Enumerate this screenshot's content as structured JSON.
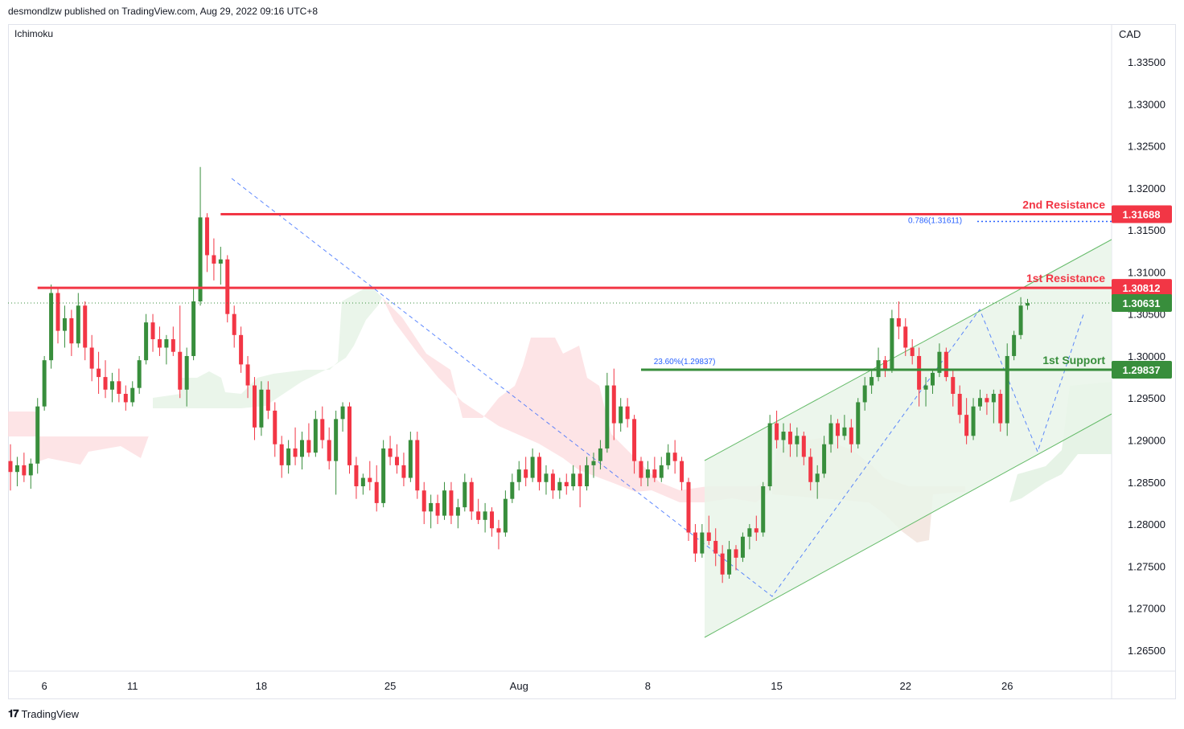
{
  "header": {
    "published": "desmondlzw published on TradingView.com, Aug 29, 2022 09:16 UTC+8"
  },
  "footer": {
    "brand": "TradingView"
  },
  "chart_data": {
    "type": "candlestick",
    "symbol_currency": "CAD",
    "indicator": "Ichimoku",
    "ylim": [
      1.2625,
      1.3395
    ],
    "y_ticks": [
      "1.33500",
      "1.33000",
      "1.32500",
      "1.32000",
      "1.31500",
      "1.31000",
      "1.30500",
      "1.30000",
      "1.29500",
      "1.29000",
      "1.28500",
      "1.28000",
      "1.27500",
      "1.27000",
      "1.26500"
    ],
    "x_ticks": [
      {
        "label": "6",
        "bar": 5
      },
      {
        "label": "11",
        "bar": 18
      },
      {
        "label": "18",
        "bar": 37
      },
      {
        "label": "25",
        "bar": 56
      },
      {
        "label": "Aug",
        "bar": 75
      },
      {
        "label": "8",
        "bar": 94
      },
      {
        "label": "15",
        "bar": 113
      },
      {
        "label": "22",
        "bar": 132
      },
      {
        "label": "26",
        "bar": 147
      }
    ],
    "levels": [
      {
        "name": "2nd Resistance",
        "value": 1.31688,
        "color": "#f23645",
        "from_bar": 31
      },
      {
        "name": "1st Resistance",
        "value": 1.30812,
        "color": "#f23645",
        "from_bar": 4
      },
      {
        "name": "1st Support",
        "value": 1.29837,
        "color": "#388e3c",
        "from_bar": 93
      }
    ],
    "current_price": {
      "value": 1.30631,
      "color": "#388e3c"
    },
    "fib_annotations": [
      {
        "text": "0.786(1.31611)",
        "value": 1.31611,
        "from_bar": 151
      },
      {
        "text": "23.60%(1.29837)",
        "value": 1.29837,
        "from_bar": 97
      }
    ],
    "candles": [
      {
        "o": 1.2875,
        "h": 1.2895,
        "l": 1.284,
        "c": 1.2862
      },
      {
        "o": 1.2862,
        "h": 1.288,
        "l": 1.2845,
        "c": 1.287
      },
      {
        "o": 1.287,
        "h": 1.2885,
        "l": 1.285,
        "c": 1.2858
      },
      {
        "o": 1.2858,
        "h": 1.2878,
        "l": 1.2842,
        "c": 1.2872
      },
      {
        "o": 1.2872,
        "h": 1.295,
        "l": 1.286,
        "c": 1.294
      },
      {
        "o": 1.294,
        "h": 1.3,
        "l": 1.2935,
        "c": 1.2995
      },
      {
        "o": 1.2995,
        "h": 1.3085,
        "l": 1.2985,
        "c": 1.3075
      },
      {
        "o": 1.3075,
        "h": 1.308,
        "l": 1.3015,
        "c": 1.303
      },
      {
        "o": 1.303,
        "h": 1.306,
        "l": 1.301,
        "c": 1.3045
      },
      {
        "o": 1.3045,
        "h": 1.3055,
        "l": 1.3,
        "c": 1.3015
      },
      {
        "o": 1.3015,
        "h": 1.3075,
        "l": 1.301,
        "c": 1.306
      },
      {
        "o": 1.306,
        "h": 1.3065,
        "l": 1.2995,
        "c": 1.301
      },
      {
        "o": 1.301,
        "h": 1.3025,
        "l": 1.297,
        "c": 1.2985
      },
      {
        "o": 1.2985,
        "h": 1.3005,
        "l": 1.2955,
        "c": 1.2975
      },
      {
        "o": 1.2975,
        "h": 1.2995,
        "l": 1.295,
        "c": 1.296
      },
      {
        "o": 1.296,
        "h": 1.298,
        "l": 1.2945,
        "c": 1.297
      },
      {
        "o": 1.297,
        "h": 1.2985,
        "l": 1.2945,
        "c": 1.2955
      },
      {
        "o": 1.2955,
        "h": 1.2965,
        "l": 1.2935,
        "c": 1.2945
      },
      {
        "o": 1.2945,
        "h": 1.297,
        "l": 1.294,
        "c": 1.2962
      },
      {
        "o": 1.2962,
        "h": 1.3,
        "l": 1.2955,
        "c": 1.2995
      },
      {
        "o": 1.2995,
        "h": 1.305,
        "l": 1.299,
        "c": 1.304
      },
      {
        "o": 1.304,
        "h": 1.305,
        "l": 1.3005,
        "c": 1.302
      },
      {
        "o": 1.302,
        "h": 1.3035,
        "l": 1.3,
        "c": 1.301
      },
      {
        "o": 1.301,
        "h": 1.3025,
        "l": 1.299,
        "c": 1.302
      },
      {
        "o": 1.302,
        "h": 1.3035,
        "l": 1.3,
        "c": 1.3005
      },
      {
        "o": 1.3005,
        "h": 1.306,
        "l": 1.295,
        "c": 1.296
      },
      {
        "o": 1.296,
        "h": 1.301,
        "l": 1.294,
        "c": 1.3
      },
      {
        "o": 1.3,
        "h": 1.308,
        "l": 1.2995,
        "c": 1.3065
      },
      {
        "o": 1.3065,
        "h": 1.3225,
        "l": 1.306,
        "c": 1.3165
      },
      {
        "o": 1.3165,
        "h": 1.317,
        "l": 1.31,
        "c": 1.312
      },
      {
        "o": 1.312,
        "h": 1.314,
        "l": 1.309,
        "c": 1.311
      },
      {
        "o": 1.311,
        "h": 1.313,
        "l": 1.3085,
        "c": 1.3115
      },
      {
        "o": 1.3115,
        "h": 1.312,
        "l": 1.304,
        "c": 1.305
      },
      {
        "o": 1.305,
        "h": 1.306,
        "l": 1.301,
        "c": 1.3025
      },
      {
        "o": 1.3025,
        "h": 1.3035,
        "l": 1.298,
        "c": 1.299
      },
      {
        "o": 1.299,
        "h": 1.3,
        "l": 1.295,
        "c": 1.2965
      },
      {
        "o": 1.2965,
        "h": 1.2975,
        "l": 1.29,
        "c": 1.2915
      },
      {
        "o": 1.2915,
        "h": 1.297,
        "l": 1.2905,
        "c": 1.296
      },
      {
        "o": 1.296,
        "h": 1.297,
        "l": 1.2925,
        "c": 1.2935
      },
      {
        "o": 1.2935,
        "h": 1.2945,
        "l": 1.288,
        "c": 1.2895
      },
      {
        "o": 1.2895,
        "h": 1.2905,
        "l": 1.2855,
        "c": 1.287
      },
      {
        "o": 1.287,
        "h": 1.29,
        "l": 1.286,
        "c": 1.289
      },
      {
        "o": 1.289,
        "h": 1.2915,
        "l": 1.287,
        "c": 1.288
      },
      {
        "o": 1.288,
        "h": 1.291,
        "l": 1.2865,
        "c": 1.29
      },
      {
        "o": 1.29,
        "h": 1.292,
        "l": 1.288,
        "c": 1.2885
      },
      {
        "o": 1.2885,
        "h": 1.2935,
        "l": 1.288,
        "c": 1.2925
      },
      {
        "o": 1.2925,
        "h": 1.294,
        "l": 1.289,
        "c": 1.29
      },
      {
        "o": 1.29,
        "h": 1.2915,
        "l": 1.2865,
        "c": 1.2875
      },
      {
        "o": 1.2875,
        "h": 1.2935,
        "l": 1.2835,
        "c": 1.2925
      },
      {
        "o": 1.2925,
        "h": 1.2945,
        "l": 1.291,
        "c": 1.294
      },
      {
        "o": 1.294,
        "h": 1.2945,
        "l": 1.286,
        "c": 1.287
      },
      {
        "o": 1.287,
        "h": 1.288,
        "l": 1.283,
        "c": 1.2845
      },
      {
        "o": 1.2845,
        "h": 1.286,
        "l": 1.2835,
        "c": 1.2855
      },
      {
        "o": 1.2855,
        "h": 1.2875,
        "l": 1.284,
        "c": 1.285
      },
      {
        "o": 1.285,
        "h": 1.287,
        "l": 1.2815,
        "c": 1.2825
      },
      {
        "o": 1.2825,
        "h": 1.29,
        "l": 1.282,
        "c": 1.289
      },
      {
        "o": 1.289,
        "h": 1.2905,
        "l": 1.287,
        "c": 1.288
      },
      {
        "o": 1.288,
        "h": 1.2895,
        "l": 1.286,
        "c": 1.287
      },
      {
        "o": 1.287,
        "h": 1.2885,
        "l": 1.2845,
        "c": 1.2855
      },
      {
        "o": 1.2855,
        "h": 1.291,
        "l": 1.285,
        "c": 1.29
      },
      {
        "o": 1.29,
        "h": 1.291,
        "l": 1.283,
        "c": 1.284
      },
      {
        "o": 1.284,
        "h": 1.285,
        "l": 1.28,
        "c": 1.2815
      },
      {
        "o": 1.2815,
        "h": 1.2835,
        "l": 1.2795,
        "c": 1.2825
      },
      {
        "o": 1.2825,
        "h": 1.2835,
        "l": 1.28,
        "c": 1.281
      },
      {
        "o": 1.281,
        "h": 1.285,
        "l": 1.2805,
        "c": 1.284
      },
      {
        "o": 1.284,
        "h": 1.285,
        "l": 1.28,
        "c": 1.281
      },
      {
        "o": 1.281,
        "h": 1.283,
        "l": 1.2795,
        "c": 1.282
      },
      {
        "o": 1.282,
        "h": 1.286,
        "l": 1.2815,
        "c": 1.285
      },
      {
        "o": 1.285,
        "h": 1.2855,
        "l": 1.2805,
        "c": 1.2815
      },
      {
        "o": 1.2815,
        "h": 1.283,
        "l": 1.28,
        "c": 1.2805
      },
      {
        "o": 1.2805,
        "h": 1.2825,
        "l": 1.279,
        "c": 1.2815
      },
      {
        "o": 1.2815,
        "h": 1.282,
        "l": 1.2785,
        "c": 1.2795
      },
      {
        "o": 1.2795,
        "h": 1.2805,
        "l": 1.277,
        "c": 1.279
      },
      {
        "o": 1.279,
        "h": 1.284,
        "l": 1.2785,
        "c": 1.283
      },
      {
        "o": 1.283,
        "h": 1.286,
        "l": 1.2825,
        "c": 1.285
      },
      {
        "o": 1.285,
        "h": 1.2875,
        "l": 1.284,
        "c": 1.2865
      },
      {
        "o": 1.2865,
        "h": 1.288,
        "l": 1.2845,
        "c": 1.2855
      },
      {
        "o": 1.2855,
        "h": 1.289,
        "l": 1.285,
        "c": 1.288
      },
      {
        "o": 1.288,
        "h": 1.2885,
        "l": 1.284,
        "c": 1.285
      },
      {
        "o": 1.285,
        "h": 1.287,
        "l": 1.2835,
        "c": 1.286
      },
      {
        "o": 1.286,
        "h": 1.2865,
        "l": 1.283,
        "c": 1.284
      },
      {
        "o": 1.284,
        "h": 1.2855,
        "l": 1.283,
        "c": 1.285
      },
      {
        "o": 1.285,
        "h": 1.286,
        "l": 1.2835,
        "c": 1.2845
      },
      {
        "o": 1.2845,
        "h": 1.287,
        "l": 1.284,
        "c": 1.286
      },
      {
        "o": 1.286,
        "h": 1.287,
        "l": 1.282,
        "c": 1.2845
      },
      {
        "o": 1.2845,
        "h": 1.288,
        "l": 1.284,
        "c": 1.287
      },
      {
        "o": 1.287,
        "h": 1.2885,
        "l": 1.2855,
        "c": 1.2875
      },
      {
        "o": 1.2875,
        "h": 1.29,
        "l": 1.2865,
        "c": 1.289
      },
      {
        "o": 1.289,
        "h": 1.298,
        "l": 1.2885,
        "c": 1.2965
      },
      {
        "o": 1.2965,
        "h": 1.2985,
        "l": 1.29,
        "c": 1.292
      },
      {
        "o": 1.292,
        "h": 1.295,
        "l": 1.291,
        "c": 1.294
      },
      {
        "o": 1.294,
        "h": 1.295,
        "l": 1.2915,
        "c": 1.2925
      },
      {
        "o": 1.2925,
        "h": 1.293,
        "l": 1.286,
        "c": 1.2875
      },
      {
        "o": 1.2875,
        "h": 1.288,
        "l": 1.2845,
        "c": 1.2855
      },
      {
        "o": 1.2855,
        "h": 1.2875,
        "l": 1.2845,
        "c": 1.2865
      },
      {
        "o": 1.2865,
        "h": 1.288,
        "l": 1.285,
        "c": 1.2855
      },
      {
        "o": 1.2855,
        "h": 1.288,
        "l": 1.285,
        "c": 1.287
      },
      {
        "o": 1.287,
        "h": 1.2895,
        "l": 1.2865,
        "c": 1.2885
      },
      {
        "o": 1.2885,
        "h": 1.29,
        "l": 1.286,
        "c": 1.2875
      },
      {
        "o": 1.2875,
        "h": 1.288,
        "l": 1.284,
        "c": 1.285
      },
      {
        "o": 1.285,
        "h": 1.2855,
        "l": 1.278,
        "c": 1.279
      },
      {
        "o": 1.279,
        "h": 1.28,
        "l": 1.2755,
        "c": 1.2765
      },
      {
        "o": 1.2765,
        "h": 1.28,
        "l": 1.276,
        "c": 1.279
      },
      {
        "o": 1.279,
        "h": 1.281,
        "l": 1.2775,
        "c": 1.278
      },
      {
        "o": 1.278,
        "h": 1.2795,
        "l": 1.275,
        "c": 1.2765
      },
      {
        "o": 1.2765,
        "h": 1.2775,
        "l": 1.273,
        "c": 1.274
      },
      {
        "o": 1.274,
        "h": 1.278,
        "l": 1.2735,
        "c": 1.277
      },
      {
        "o": 1.277,
        "h": 1.2775,
        "l": 1.2745,
        "c": 1.276
      },
      {
        "o": 1.276,
        "h": 1.279,
        "l": 1.2755,
        "c": 1.2785
      },
      {
        "o": 1.2785,
        "h": 1.28,
        "l": 1.277,
        "c": 1.2795
      },
      {
        "o": 1.2795,
        "h": 1.281,
        "l": 1.278,
        "c": 1.279
      },
      {
        "o": 1.279,
        "h": 1.285,
        "l": 1.2785,
        "c": 1.2845
      },
      {
        "o": 1.2845,
        "h": 1.293,
        "l": 1.284,
        "c": 1.292
      },
      {
        "o": 1.292,
        "h": 1.2935,
        "l": 1.289,
        "c": 1.29
      },
      {
        "o": 1.29,
        "h": 1.292,
        "l": 1.2885,
        "c": 1.291
      },
      {
        "o": 1.291,
        "h": 1.292,
        "l": 1.288,
        "c": 1.2895
      },
      {
        "o": 1.2895,
        "h": 1.2915,
        "l": 1.288,
        "c": 1.2905
      },
      {
        "o": 1.2905,
        "h": 1.291,
        "l": 1.287,
        "c": 1.288
      },
      {
        "o": 1.288,
        "h": 1.289,
        "l": 1.284,
        "c": 1.285
      },
      {
        "o": 1.285,
        "h": 1.287,
        "l": 1.283,
        "c": 1.286
      },
      {
        "o": 1.286,
        "h": 1.2905,
        "l": 1.2855,
        "c": 1.2895
      },
      {
        "o": 1.2895,
        "h": 1.293,
        "l": 1.2885,
        "c": 1.292
      },
      {
        "o": 1.292,
        "h": 1.2925,
        "l": 1.289,
        "c": 1.2905
      },
      {
        "o": 1.2905,
        "h": 1.293,
        "l": 1.29,
        "c": 1.2915
      },
      {
        "o": 1.2915,
        "h": 1.2925,
        "l": 1.2885,
        "c": 1.2895
      },
      {
        "o": 1.2895,
        "h": 1.295,
        "l": 1.289,
        "c": 1.2945
      },
      {
        "o": 1.2945,
        "h": 1.2975,
        "l": 1.2935,
        "c": 1.2965
      },
      {
        "o": 1.2965,
        "h": 1.2985,
        "l": 1.2955,
        "c": 1.2975
      },
      {
        "o": 1.2975,
        "h": 1.301,
        "l": 1.297,
        "c": 1.2995
      },
      {
        "o": 1.2995,
        "h": 1.3,
        "l": 1.2975,
        "c": 1.2985
      },
      {
        "o": 1.2985,
        "h": 1.3055,
        "l": 1.298,
        "c": 1.3045
      },
      {
        "o": 1.3045,
        "h": 1.3065,
        "l": 1.302,
        "c": 1.3035
      },
      {
        "o": 1.3035,
        "h": 1.3045,
        "l": 1.3,
        "c": 1.301
      },
      {
        "o": 1.301,
        "h": 1.302,
        "l": 1.299,
        "c": 1.3
      },
      {
        "o": 1.3,
        "h": 1.301,
        "l": 1.294,
        "c": 1.296
      },
      {
        "o": 1.296,
        "h": 1.2975,
        "l": 1.294,
        "c": 1.2965
      },
      {
        "o": 1.2965,
        "h": 1.2985,
        "l": 1.2955,
        "c": 1.298
      },
      {
        "o": 1.298,
        "h": 1.3015,
        "l": 1.2975,
        "c": 1.3005
      },
      {
        "o": 1.3005,
        "h": 1.301,
        "l": 1.297,
        "c": 1.2975
      },
      {
        "o": 1.2975,
        "h": 1.2985,
        "l": 1.294,
        "c": 1.2955
      },
      {
        "o": 1.2955,
        "h": 1.2965,
        "l": 1.292,
        "c": 1.293
      },
      {
        "o": 1.293,
        "h": 1.295,
        "l": 1.2895,
        "c": 1.2905
      },
      {
        "o": 1.2905,
        "h": 1.295,
        "l": 1.29,
        "c": 1.294
      },
      {
        "o": 1.294,
        "h": 1.296,
        "l": 1.2935,
        "c": 1.295
      },
      {
        "o": 1.295,
        "h": 1.2955,
        "l": 1.293,
        "c": 1.2945
      },
      {
        "o": 1.2945,
        "h": 1.296,
        "l": 1.292,
        "c": 1.2955
      },
      {
        "o": 1.2955,
        "h": 1.296,
        "l": 1.291,
        "c": 1.292
      },
      {
        "o": 1.292,
        "h": 1.3015,
        "l": 1.2905,
        "c": 1.3
      },
      {
        "o": 1.3,
        "h": 1.303,
        "l": 1.2995,
        "c": 1.3025
      },
      {
        "o": 1.3025,
        "h": 1.307,
        "l": 1.302,
        "c": 1.306
      },
      {
        "o": 1.306,
        "h": 1.3068,
        "l": 1.3055,
        "c": 1.3063
      }
    ]
  }
}
